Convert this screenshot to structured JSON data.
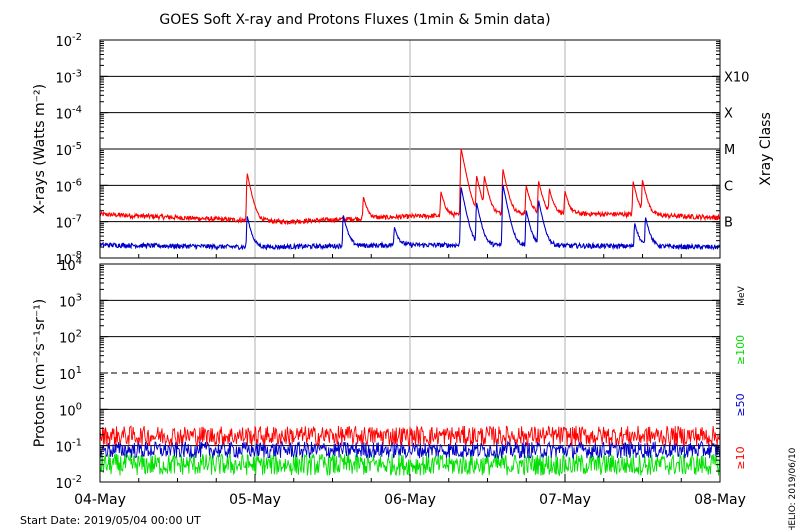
{
  "title": "GOES Soft X-ray and Protons Fluxes   (1min & 5min data)",
  "start_date_text": "Start Date: 2019/05/04 00:00 UT",
  "credit_text": "HELIO: 2019/06/10",
  "chart_data": [
    {
      "type": "line",
      "panel": "xray",
      "ylabel": "X-rays (Watts m⁻²)",
      "y_scale": "log",
      "ylim": [
        1e-08,
        0.01
      ],
      "y_ticks": [
        {
          "base": "10",
          "exp": "-2"
        },
        {
          "base": "10",
          "exp": "-3"
        },
        {
          "base": "10",
          "exp": "-4"
        },
        {
          "base": "10",
          "exp": "-5"
        },
        {
          "base": "10",
          "exp": "-6"
        },
        {
          "base": "10",
          "exp": "-7"
        },
        {
          "base": "10",
          "exp": "-8"
        }
      ],
      "right_axis_label": "Xray Class",
      "class_labels": [
        "X10",
        "X",
        "M",
        "C",
        "B"
      ],
      "grid": true,
      "x_day_ticks": [
        "04-May",
        "05-May",
        "06-May",
        "07-May",
        "08-May"
      ],
      "xlim_days": [
        0,
        4
      ],
      "series": [
        {
          "color": "#ff0000",
          "baseline": 1.5e-07,
          "baseline_trend": [
            [
              0.0,
              1.6e-07
            ],
            [
              0.7,
              1.2e-07
            ],
            [
              1.2,
              1e-07
            ],
            [
              2.0,
              1.4e-07
            ],
            [
              2.8,
              1.7e-07
            ],
            [
              3.4,
              1.6e-07
            ],
            [
              4.0,
              1.3e-07
            ]
          ],
          "peaks": [
            [
              0.95,
              2e-06
            ],
            [
              1.7,
              3.5e-07
            ],
            [
              2.2,
              5e-07
            ],
            [
              2.33,
              1e-05
            ],
            [
              2.43,
              1.6e-06
            ],
            [
              2.48,
              1.5e-06
            ],
            [
              2.6,
              2.6e-06
            ],
            [
              2.75,
              8e-07
            ],
            [
              2.83,
              1.1e-06
            ],
            [
              2.9,
              6e-07
            ],
            [
              3.0,
              5e-07
            ],
            [
              3.44,
              1.1e-06
            ],
            [
              3.5,
              1.2e-06
            ]
          ]
        },
        {
          "color": "#0000c8",
          "baseline": 2.2e-08,
          "baseline_trend": [
            [
              0.0,
              2.3e-08
            ],
            [
              1.0,
              2e-08
            ],
            [
              2.0,
              2.3e-08
            ],
            [
              3.0,
              2.2e-08
            ],
            [
              4.0,
              2e-08
            ]
          ],
          "peaks": [
            [
              0.95,
              1.2e-07
            ],
            [
              1.57,
              1.3e-07
            ],
            [
              1.9,
              5e-08
            ],
            [
              2.33,
              8.5e-07
            ],
            [
              2.43,
              3e-07
            ],
            [
              2.6,
              1e-06
            ],
            [
              2.75,
              1.8e-07
            ],
            [
              2.83,
              3.5e-07
            ],
            [
              3.45,
              7e-08
            ],
            [
              3.52,
              1.1e-07
            ]
          ]
        }
      ]
    },
    {
      "type": "line",
      "panel": "protons",
      "ylabel": "Protons (cm⁻²s⁻¹sr⁻¹)",
      "y_scale": "log",
      "ylim": [
        0.01,
        10000
      ],
      "y_ticks": [
        {
          "base": "10",
          "exp": "4"
        },
        {
          "base": "10",
          "exp": "3"
        },
        {
          "base": "10",
          "exp": "2"
        },
        {
          "base": "10",
          "exp": "1"
        },
        {
          "base": "10",
          "exp": "0"
        },
        {
          "base": "10",
          "exp": "-1"
        },
        {
          "base": "10",
          "exp": "-2"
        }
      ],
      "threshold": 10,
      "energy_unit": "MeV",
      "grid": true,
      "x_day_ticks": [
        "04-May",
        "05-May",
        "06-May",
        "07-May",
        "08-May"
      ],
      "xlim_days": [
        0,
        4
      ],
      "series": [
        {
          "name": "≥10",
          "color": "#ff0000",
          "baseline": 0.16,
          "noise_min": 0.1,
          "noise_max": 0.35
        },
        {
          "name": "≥50",
          "color": "#0000c8",
          "baseline": 0.07,
          "noise_min": 0.045,
          "noise_max": 0.13
        },
        {
          "name": "≥100",
          "color": "#00e000",
          "baseline": 0.035,
          "noise_min": 0.015,
          "noise_max": 0.06
        }
      ]
    }
  ]
}
